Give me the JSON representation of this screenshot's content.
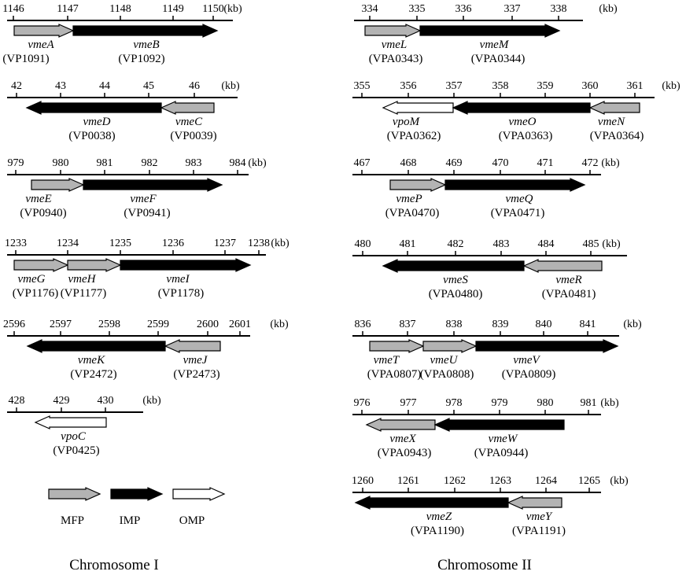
{
  "unit": "(kb)",
  "colors": {
    "MFP": "#b3b3b3",
    "IMP": "#000000",
    "OMP": "#ffffff",
    "stroke": "#000000"
  },
  "legend": [
    {
      "type": "MFP",
      "label": "MFP"
    },
    {
      "type": "IMP",
      "label": "IMP"
    },
    {
      "type": "OMP",
      "label": "OMP"
    }
  ],
  "chromosome_labels": {
    "left": "Chromosome I",
    "right": "Chromosome II"
  },
  "tracks": [
    {
      "id": "c1-vmeAB",
      "column": "left",
      "ticks": [
        "1146",
        "1147",
        "1148",
        "1149",
        "1150"
      ],
      "genes": [
        {
          "name": "vmeA",
          "locus": "(VP1091)",
          "type": "MFP",
          "dir": "right"
        },
        {
          "name": "vmeB",
          "locus": "(VP1092)",
          "type": "IMP",
          "dir": "right"
        }
      ]
    },
    {
      "id": "c1-vmeCD",
      "column": "left",
      "ticks": [
        "42",
        "43",
        "44",
        "45",
        "46"
      ],
      "genes": [
        {
          "name": "vmeD",
          "locus": "(VP0038)",
          "type": "IMP",
          "dir": "left"
        },
        {
          "name": "vmeC",
          "locus": "(VP0039)",
          "type": "MFP",
          "dir": "left"
        }
      ]
    },
    {
      "id": "c1-vmeEF",
      "column": "left",
      "ticks": [
        "979",
        "980",
        "981",
        "982",
        "983",
        "984"
      ],
      "genes": [
        {
          "name": "vmeE",
          "locus": "(VP0940)",
          "type": "MFP",
          "dir": "right"
        },
        {
          "name": "vmeF",
          "locus": "(VP0941)",
          "type": "IMP",
          "dir": "right"
        }
      ]
    },
    {
      "id": "c1-vmeGHI",
      "column": "left",
      "ticks": [
        "1233",
        "1234",
        "1235",
        "1236",
        "1237",
        "1238"
      ],
      "genes": [
        {
          "name": "vmeG",
          "locus": "(VP1176)",
          "type": "MFP",
          "dir": "right"
        },
        {
          "name": "vmeH",
          "locus": "(VP1177)",
          "type": "MFP",
          "dir": "right"
        },
        {
          "name": "vmeI",
          "locus": "(VP1178)",
          "type": "IMP",
          "dir": "right"
        }
      ]
    },
    {
      "id": "c1-vmeJK",
      "column": "left",
      "ticks": [
        "2596",
        "2597",
        "2598",
        "2599",
        "2600",
        "2601"
      ],
      "genes": [
        {
          "name": "vmeK",
          "locus": "(VP2472)",
          "type": "IMP",
          "dir": "left"
        },
        {
          "name": "vmeJ",
          "locus": "(VP2473)",
          "type": "MFP",
          "dir": "left"
        }
      ]
    },
    {
      "id": "c1-vpoC",
      "column": "left",
      "ticks": [
        "428",
        "429",
        "430"
      ],
      "genes": [
        {
          "name": "vpoC",
          "locus": "(VP0425)",
          "type": "OMP",
          "dir": "left"
        }
      ]
    },
    {
      "id": "c2-vmeLM",
      "column": "right",
      "ticks": [
        "334",
        "335",
        "336",
        "337",
        "338"
      ],
      "genes": [
        {
          "name": "vmeL",
          "locus": "(VPA0343)",
          "type": "MFP",
          "dir": "right"
        },
        {
          "name": "vmeM",
          "locus": "(VPA0344)",
          "type": "IMP",
          "dir": "right"
        }
      ]
    },
    {
      "id": "c2-vmeNO",
      "column": "right",
      "ticks": [
        "355",
        "356",
        "357",
        "358",
        "359",
        "360",
        "361"
      ],
      "genes": [
        {
          "name": "vpoM",
          "locus": "(VPA0362)",
          "type": "OMP",
          "dir": "left"
        },
        {
          "name": "vmeO",
          "locus": "(VPA0363)",
          "type": "IMP",
          "dir": "left"
        },
        {
          "name": "vmeN",
          "locus": "(VPA0364)",
          "type": "MFP",
          "dir": "left"
        }
      ]
    },
    {
      "id": "c2-vmePQ",
      "column": "right",
      "ticks": [
        "467",
        "468",
        "469",
        "470",
        "471",
        "472"
      ],
      "genes": [
        {
          "name": "vmeP",
          "locus": "(VPA0470)",
          "type": "MFP",
          "dir": "right"
        },
        {
          "name": "vmeQ",
          "locus": "(VPA0471)",
          "type": "IMP",
          "dir": "right"
        }
      ]
    },
    {
      "id": "c2-vmeRS",
      "column": "right",
      "ticks": [
        "480",
        "481",
        "482",
        "483",
        "484",
        "485"
      ],
      "genes": [
        {
          "name": "vmeS",
          "locus": "(VPA0480)",
          "type": "IMP",
          "dir": "left"
        },
        {
          "name": "vmeR",
          "locus": "(VPA0481)",
          "type": "MFP",
          "dir": "left"
        }
      ]
    },
    {
      "id": "c2-vmeTUV",
      "column": "right",
      "ticks": [
        "836",
        "837",
        "838",
        "839",
        "840",
        "841"
      ],
      "genes": [
        {
          "name": "vmeT",
          "locus": "(VPA0807)",
          "type": "MFP",
          "dir": "right"
        },
        {
          "name": "vmeU",
          "locus": "(VPA0808)",
          "type": "MFP",
          "dir": "right"
        },
        {
          "name": "vmeV",
          "locus": "(VPA0809)",
          "type": "IMP",
          "dir": "right"
        }
      ]
    },
    {
      "id": "c2-vmeWX",
      "column": "right",
      "ticks": [
        "976",
        "977",
        "978",
        "979",
        "980",
        "981"
      ],
      "genes": [
        {
          "name": "vmeX",
          "locus": "(VPA0943)",
          "type": "MFP",
          "dir": "left"
        },
        {
          "name": "vmeW",
          "locus": "(VPA0944)",
          "type": "IMP",
          "dir": "left"
        }
      ]
    },
    {
      "id": "c2-vmeYZ",
      "column": "right",
      "ticks": [
        "1260",
        "1261",
        "1262",
        "1263",
        "1264",
        "1265"
      ],
      "genes": [
        {
          "name": "vmeZ",
          "locus": "(VPA1190)",
          "type": "IMP",
          "dir": "left"
        },
        {
          "name": "vmeY",
          "locus": "(VPA1191)",
          "type": "MFP",
          "dir": "left"
        }
      ]
    }
  ]
}
